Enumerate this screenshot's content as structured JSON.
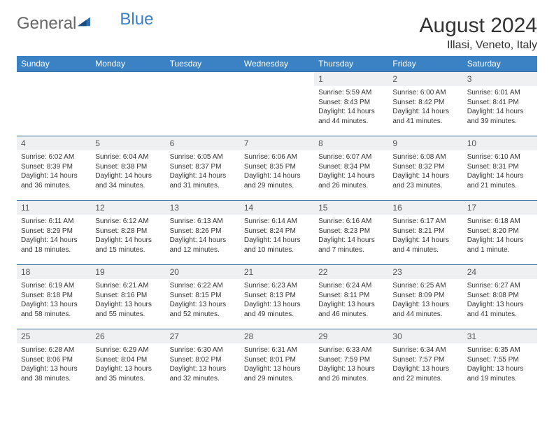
{
  "brand": {
    "part1": "General",
    "part2": "Blue"
  },
  "title": "August 2024",
  "location": "Illasi, Veneto, Italy",
  "colors": {
    "header_bg": "#3b82c4",
    "header_text": "#ffffff",
    "daynum_bg": "#eef0f2",
    "row_border": "#3b6fa0",
    "brand_gray": "#666666",
    "brand_blue": "#3b7fc4"
  },
  "weekdays": [
    "Sunday",
    "Monday",
    "Tuesday",
    "Wednesday",
    "Thursday",
    "Friday",
    "Saturday"
  ],
  "weeks": [
    [
      null,
      null,
      null,
      null,
      {
        "n": "1",
        "sr": "5:59 AM",
        "ss": "8:43 PM",
        "dl": "14 hours and 44 minutes."
      },
      {
        "n": "2",
        "sr": "6:00 AM",
        "ss": "8:42 PM",
        "dl": "14 hours and 41 minutes."
      },
      {
        "n": "3",
        "sr": "6:01 AM",
        "ss": "8:41 PM",
        "dl": "14 hours and 39 minutes."
      }
    ],
    [
      {
        "n": "4",
        "sr": "6:02 AM",
        "ss": "8:39 PM",
        "dl": "14 hours and 36 minutes."
      },
      {
        "n": "5",
        "sr": "6:04 AM",
        "ss": "8:38 PM",
        "dl": "14 hours and 34 minutes."
      },
      {
        "n": "6",
        "sr": "6:05 AM",
        "ss": "8:37 PM",
        "dl": "14 hours and 31 minutes."
      },
      {
        "n": "7",
        "sr": "6:06 AM",
        "ss": "8:35 PM",
        "dl": "14 hours and 29 minutes."
      },
      {
        "n": "8",
        "sr": "6:07 AM",
        "ss": "8:34 PM",
        "dl": "14 hours and 26 minutes."
      },
      {
        "n": "9",
        "sr": "6:08 AM",
        "ss": "8:32 PM",
        "dl": "14 hours and 23 minutes."
      },
      {
        "n": "10",
        "sr": "6:10 AM",
        "ss": "8:31 PM",
        "dl": "14 hours and 21 minutes."
      }
    ],
    [
      {
        "n": "11",
        "sr": "6:11 AM",
        "ss": "8:29 PM",
        "dl": "14 hours and 18 minutes."
      },
      {
        "n": "12",
        "sr": "6:12 AM",
        "ss": "8:28 PM",
        "dl": "14 hours and 15 minutes."
      },
      {
        "n": "13",
        "sr": "6:13 AM",
        "ss": "8:26 PM",
        "dl": "14 hours and 12 minutes."
      },
      {
        "n": "14",
        "sr": "6:14 AM",
        "ss": "8:24 PM",
        "dl": "14 hours and 10 minutes."
      },
      {
        "n": "15",
        "sr": "6:16 AM",
        "ss": "8:23 PM",
        "dl": "14 hours and 7 minutes."
      },
      {
        "n": "16",
        "sr": "6:17 AM",
        "ss": "8:21 PM",
        "dl": "14 hours and 4 minutes."
      },
      {
        "n": "17",
        "sr": "6:18 AM",
        "ss": "8:20 PM",
        "dl": "14 hours and 1 minute."
      }
    ],
    [
      {
        "n": "18",
        "sr": "6:19 AM",
        "ss": "8:18 PM",
        "dl": "13 hours and 58 minutes."
      },
      {
        "n": "19",
        "sr": "6:21 AM",
        "ss": "8:16 PM",
        "dl": "13 hours and 55 minutes."
      },
      {
        "n": "20",
        "sr": "6:22 AM",
        "ss": "8:15 PM",
        "dl": "13 hours and 52 minutes."
      },
      {
        "n": "21",
        "sr": "6:23 AM",
        "ss": "8:13 PM",
        "dl": "13 hours and 49 minutes."
      },
      {
        "n": "22",
        "sr": "6:24 AM",
        "ss": "8:11 PM",
        "dl": "13 hours and 46 minutes."
      },
      {
        "n": "23",
        "sr": "6:25 AM",
        "ss": "8:09 PM",
        "dl": "13 hours and 44 minutes."
      },
      {
        "n": "24",
        "sr": "6:27 AM",
        "ss": "8:08 PM",
        "dl": "13 hours and 41 minutes."
      }
    ],
    [
      {
        "n": "25",
        "sr": "6:28 AM",
        "ss": "8:06 PM",
        "dl": "13 hours and 38 minutes."
      },
      {
        "n": "26",
        "sr": "6:29 AM",
        "ss": "8:04 PM",
        "dl": "13 hours and 35 minutes."
      },
      {
        "n": "27",
        "sr": "6:30 AM",
        "ss": "8:02 PM",
        "dl": "13 hours and 32 minutes."
      },
      {
        "n": "28",
        "sr": "6:31 AM",
        "ss": "8:01 PM",
        "dl": "13 hours and 29 minutes."
      },
      {
        "n": "29",
        "sr": "6:33 AM",
        "ss": "7:59 PM",
        "dl": "13 hours and 26 minutes."
      },
      {
        "n": "30",
        "sr": "6:34 AM",
        "ss": "7:57 PM",
        "dl": "13 hours and 22 minutes."
      },
      {
        "n": "31",
        "sr": "6:35 AM",
        "ss": "7:55 PM",
        "dl": "13 hours and 19 minutes."
      }
    ]
  ],
  "labels": {
    "sunrise": "Sunrise: ",
    "sunset": "Sunset: ",
    "daylight": "Daylight: "
  }
}
